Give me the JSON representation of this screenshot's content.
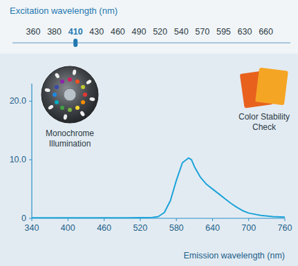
{
  "excitation": {
    "label": "Excitation wavelength (nm)",
    "wavelengths": [
      360,
      380,
      410,
      430,
      460,
      490,
      520,
      540,
      570,
      595,
      630,
      660
    ],
    "selected": 410
  },
  "chart_data": {
    "type": "line",
    "x_label": "Emission wavelength (nm)",
    "annotations": [
      "Monochrome Illumination",
      "Color Stability Check"
    ],
    "x": [
      340,
      380,
      420,
      460,
      500,
      540,
      550,
      560,
      570,
      580,
      590,
      600,
      605,
      610,
      620,
      630,
      640,
      650,
      660,
      670,
      680,
      690,
      700,
      720,
      740,
      760
    ],
    "values": [
      0.1,
      0.1,
      0.1,
      0.1,
      0.1,
      0.15,
      0.3,
      1,
      3,
      6.5,
      9.5,
      10.3,
      10,
      8.8,
      7,
      5.8,
      5,
      4.2,
      3.4,
      2.6,
      1.9,
      1.3,
      0.9,
      0.5,
      0.3,
      0.2
    ],
    "color": "#1ba3d9",
    "xlim": [
      340,
      760
    ],
    "xticks": [
      340,
      400,
      460,
      520,
      580,
      640,
      700,
      760
    ],
    "ylim": [
      0,
      23
    ],
    "yticks": [
      0,
      {
        "value": 10,
        "label": "10.0"
      },
      {
        "value": 20,
        "label": "20.0"
      }
    ],
    "grid": false
  }
}
